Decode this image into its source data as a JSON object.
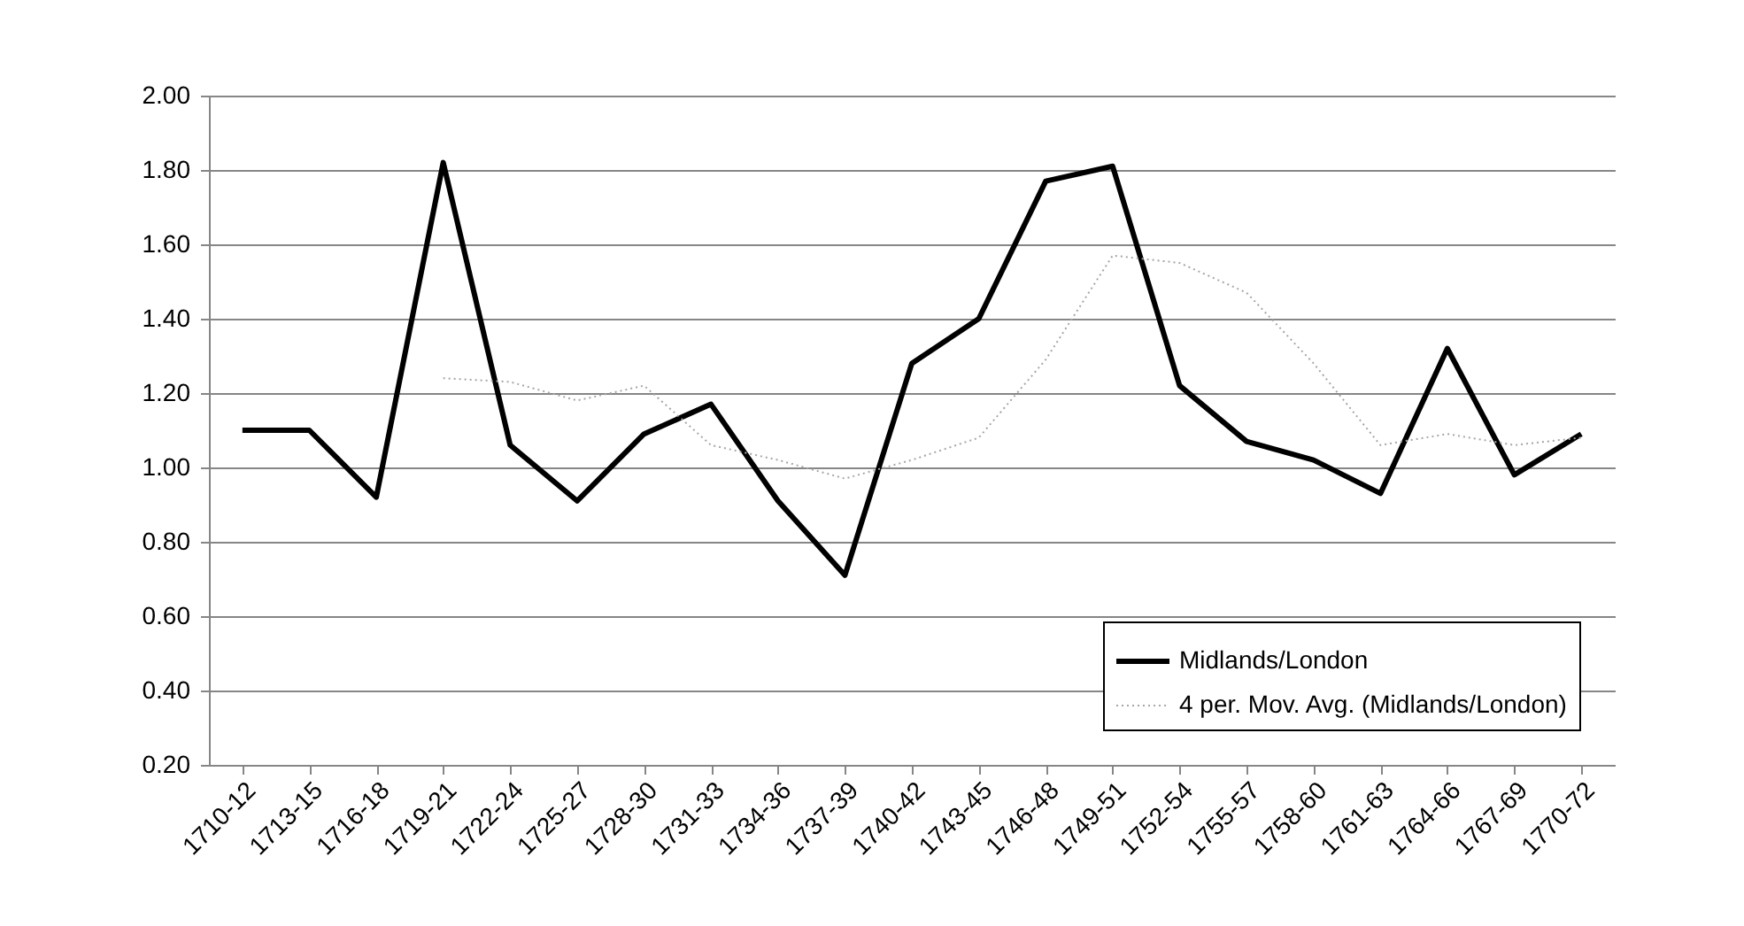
{
  "chart_data": {
    "type": "line",
    "categories": [
      "1710-12",
      "1713-15",
      "1716-18",
      "1719-21",
      "1722-24",
      "1725-27",
      "1728-30",
      "1731-33",
      "1734-36",
      "1737-39",
      "1740-42",
      "1743-45",
      "1746-48",
      "1749-51",
      "1752-54",
      "1755-57",
      "1758-60",
      "1761-63",
      "1764-66",
      "1767-69",
      "1770-72"
    ],
    "series": [
      {
        "name": "Midlands/London",
        "color": "#000000",
        "line_style": "solid",
        "values": [
          1.1,
          1.1,
          0.92,
          1.82,
          1.06,
          0.91,
          1.09,
          1.17,
          0.91,
          0.71,
          1.28,
          1.4,
          1.77,
          1.81,
          1.22,
          1.07,
          1.02,
          0.93,
          1.32,
          0.98,
          1.09
        ]
      },
      {
        "name": "4 per. Mov. Avg. (Midlands/London)",
        "color": "#a6a6a6",
        "line_style": "dotted",
        "values": [
          null,
          null,
          null,
          1.24,
          1.23,
          1.18,
          1.22,
          1.06,
          1.02,
          0.97,
          1.02,
          1.08,
          1.29,
          1.57,
          1.55,
          1.47,
          1.28,
          1.06,
          1.09,
          1.06,
          1.08
        ]
      }
    ],
    "ylim": [
      0.2,
      2.0
    ],
    "yticks": [
      {
        "value": 0.2,
        "label": "0.20"
      },
      {
        "value": 0.4,
        "label": "0.40"
      },
      {
        "value": 0.6,
        "label": "0.60"
      },
      {
        "value": 0.8,
        "label": "0.80"
      },
      {
        "value": 1.0,
        "label": "1.00"
      },
      {
        "value": 1.2,
        "label": "1.20"
      },
      {
        "value": 1.4,
        "label": "1.40"
      },
      {
        "value": 1.6,
        "label": "1.60"
      },
      {
        "value": 1.8,
        "label": "1.80"
      },
      {
        "value": 2.0,
        "label": "2.00"
      }
    ],
    "grid": "y",
    "legend": "bottom right"
  }
}
